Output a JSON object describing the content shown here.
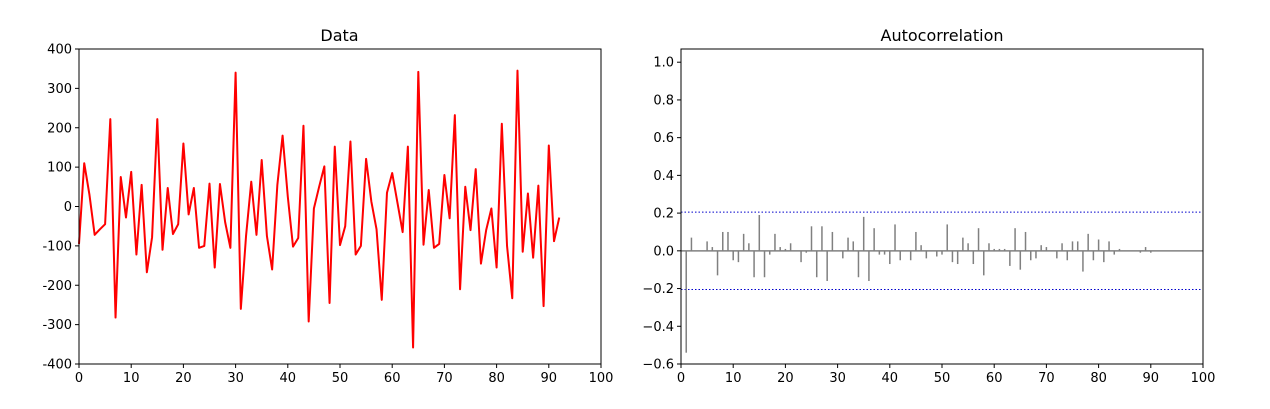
{
  "chart_data": [
    {
      "type": "line",
      "title": "Data",
      "xlabel": "",
      "ylabel": "",
      "xlim": [
        0,
        100
      ],
      "ylim": [
        -400,
        400
      ],
      "xticks": [
        0,
        10,
        20,
        30,
        40,
        50,
        60,
        70,
        80,
        90,
        100
      ],
      "yticks": [
        -400,
        -300,
        -200,
        -100,
        0,
        100,
        200,
        300,
        400
      ],
      "grid": false,
      "color": "#ff0000",
      "x": [
        0,
        1,
        2,
        3,
        4,
        5,
        6,
        7,
        8,
        9,
        10,
        11,
        12,
        13,
        14,
        15,
        16,
        17,
        18,
        19,
        20,
        21,
        22,
        23,
        24,
        25,
        26,
        27,
        28,
        29,
        30,
        31,
        32,
        33,
        34,
        35,
        36,
        37,
        38,
        39,
        40,
        41,
        42,
        43,
        44,
        45,
        46,
        47,
        48,
        49,
        50,
        51,
        52,
        53,
        54,
        55,
        56,
        57,
        58,
        59,
        60,
        61,
        62,
        63,
        64,
        65,
        66,
        67,
        68,
        69,
        70,
        71,
        72,
        73,
        74,
        75,
        76,
        77,
        78,
        79,
        80,
        81,
        82,
        83,
        84,
        85,
        86,
        87,
        88,
        89,
        90,
        91,
        92
      ],
      "y": [
        -95,
        110,
        30,
        -72,
        -58,
        -45,
        222,
        -282,
        75,
        -28,
        88,
        -122,
        55,
        -167,
        -78,
        222,
        -110,
        47,
        -70,
        -45,
        160,
        -20,
        47,
        -105,
        -100,
        58,
        -155,
        57,
        -40,
        -105,
        340,
        -260,
        -75,
        63,
        -72,
        118,
        -75,
        -160,
        55,
        180,
        25,
        -102,
        -80,
        205,
        -292,
        -5,
        50,
        102,
        -245,
        152,
        -98,
        -50,
        165,
        -122,
        -100,
        121,
        13,
        -58,
        -237,
        35,
        85,
        10,
        -65,
        152,
        -358,
        342,
        -97,
        42,
        -105,
        -95,
        80,
        -30,
        232,
        -210,
        50,
        -60,
        95,
        -145,
        -60,
        -5,
        -155,
        210,
        -100,
        -233,
        345,
        -115,
        33,
        -130,
        53,
        -253,
        155,
        -88,
        -28
      ]
    },
    {
      "type": "bar",
      "title": "Autocorrelation",
      "xlabel": "",
      "ylabel": "",
      "xlim": [
        0,
        100
      ],
      "ylim": [
        -0.6,
        1.07
      ],
      "xticks": [
        0,
        10,
        20,
        30,
        40,
        50,
        60,
        70,
        80,
        90,
        100
      ],
      "yticks": [
        -0.6,
        -0.4,
        -0.2,
        0.0,
        0.2,
        0.4,
        0.6,
        0.8,
        1.0
      ],
      "ytick_labels": [
        "−0.6",
        "−0.4",
        "−0.2",
        "0.0",
        "0.2",
        "0.4",
        "0.6",
        "0.8",
        "1.0"
      ],
      "grid": false,
      "bar_color": "#808080",
      "zero_line_color": "#808080",
      "confidence_bounds": [
        -0.205,
        0.205
      ],
      "confidence_color": "#0000cc",
      "lags": [
        1,
        2,
        3,
        4,
        5,
        6,
        7,
        8,
        9,
        10,
        11,
        12,
        13,
        14,
        15,
        16,
        17,
        18,
        19,
        20,
        21,
        22,
        23,
        24,
        25,
        26,
        27,
        28,
        29,
        30,
        31,
        32,
        33,
        34,
        35,
        36,
        37,
        38,
        39,
        40,
        41,
        42,
        43,
        44,
        45,
        46,
        47,
        48,
        49,
        50,
        51,
        52,
        53,
        54,
        55,
        56,
        57,
        58,
        59,
        60,
        61,
        62,
        63,
        64,
        65,
        66,
        67,
        68,
        69,
        70,
        71,
        72,
        73,
        74,
        75,
        76,
        77,
        78,
        79,
        80,
        81,
        82,
        83,
        84,
        85,
        86,
        87,
        88,
        89,
        90,
        91
      ],
      "values": [
        -0.54,
        0.07,
        0,
        0,
        0.05,
        0.02,
        -0.13,
        0.1,
        0.1,
        -0.05,
        -0.06,
        0.09,
        0.04,
        -0.14,
        0.19,
        -0.14,
        -0.02,
        0.09,
        0.02,
        0.01,
        0.04,
        0,
        -0.06,
        -0.01,
        0.13,
        -0.14,
        0.13,
        -0.16,
        0.1,
        0,
        -0.04,
        0.07,
        0.05,
        -0.14,
        0.18,
        -0.16,
        0.12,
        -0.02,
        -0.02,
        -0.07,
        0.14,
        -0.05,
        0,
        -0.05,
        0.1,
        0.03,
        -0.04,
        0,
        -0.03,
        -0.02,
        0.14,
        -0.06,
        -0.07,
        0.07,
        0.04,
        -0.07,
        0.12,
        -0.13,
        0.04,
        0.01,
        0.01,
        0.01,
        -0.08,
        0.12,
        -0.1,
        0.1,
        -0.05,
        -0.04,
        0.03,
        0.02,
        0,
        -0.04,
        0.04,
        -0.05,
        0.05,
        0.05,
        -0.11,
        0.09,
        -0.05,
        0.06,
        -0.06,
        0.05,
        -0.02,
        0.01,
        0,
        0,
        0,
        -0.01,
        0.02,
        -0.01,
        0
      ]
    }
  ]
}
